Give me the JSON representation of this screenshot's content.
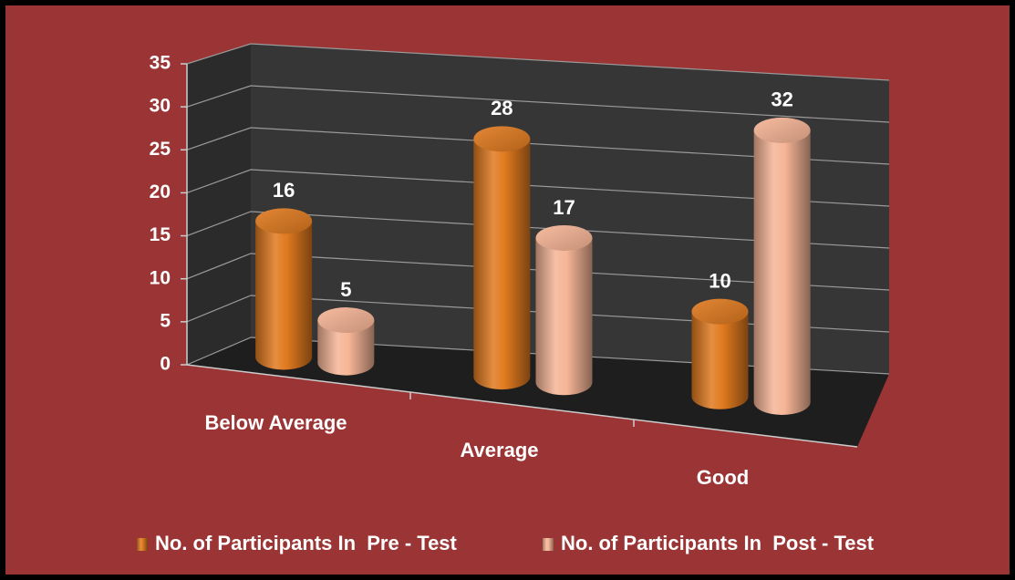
{
  "chart_data": {
    "type": "bar",
    "categories": [
      "Below Average",
      "Average",
      "Good"
    ],
    "series": [
      {
        "name": "No. of Participants In  Pre - Test",
        "color": "#e07a1f",
        "values": [
          16,
          28,
          10
        ]
      },
      {
        "name": "No. of Participants In  Post - Test",
        "color": "#f6b596",
        "values": [
          5,
          17,
          32
        ]
      }
    ],
    "ylim": [
      0,
      35
    ],
    "yticks": [
      0,
      5,
      10,
      15,
      20,
      25,
      30,
      35
    ],
    "grid": true,
    "legend": "bottom"
  }
}
